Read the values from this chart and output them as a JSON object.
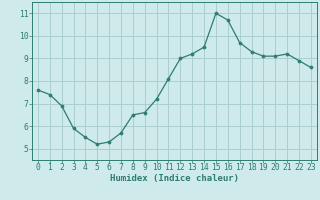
{
  "x": [
    0,
    1,
    2,
    3,
    4,
    5,
    6,
    7,
    8,
    9,
    10,
    11,
    12,
    13,
    14,
    15,
    16,
    17,
    18,
    19,
    20,
    21,
    22,
    23
  ],
  "y": [
    7.6,
    7.4,
    6.9,
    5.9,
    5.5,
    5.2,
    5.3,
    5.7,
    6.5,
    6.6,
    7.2,
    8.1,
    9.0,
    9.2,
    9.5,
    11.0,
    10.7,
    9.7,
    9.3,
    9.1,
    9.1,
    9.2,
    8.9,
    8.6
  ],
  "line_color": "#2e7d6e",
  "marker_color": "#2e7d6e",
  "bg_color": "#ceeaea",
  "grid_color": "#aacece",
  "xlabel": "Humidex (Indice chaleur)",
  "xlim": [
    -0.5,
    23.5
  ],
  "ylim": [
    4.5,
    11.5
  ],
  "yticks": [
    5,
    6,
    7,
    8,
    9,
    10,
    11
  ],
  "xticks": [
    0,
    1,
    2,
    3,
    4,
    5,
    6,
    7,
    8,
    9,
    10,
    11,
    12,
    13,
    14,
    15,
    16,
    17,
    18,
    19,
    20,
    21,
    22,
    23
  ],
  "xlabel_fontsize": 6.5,
  "tick_fontsize": 5.8
}
